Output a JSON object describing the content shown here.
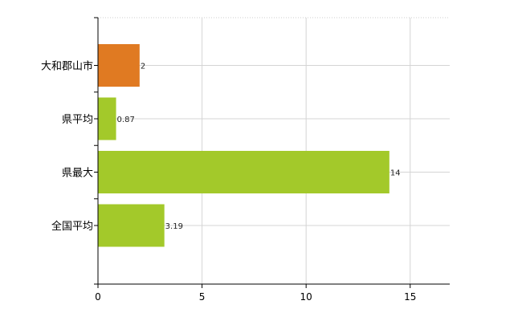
{
  "chart_data": {
    "type": "bar",
    "orientation": "horizontal",
    "categories": [
      "大和郡山市",
      "県平均",
      "県最大",
      "全国平均"
    ],
    "values": [
      2,
      0.87,
      14,
      3.19
    ],
    "data_labels": [
      "2",
      "0.87",
      "14",
      "3.19"
    ],
    "bar_colors": [
      "#e07a22",
      "#a3c92a",
      "#a3c92a",
      "#a3c92a"
    ],
    "x_ticks": [
      0,
      5,
      10,
      15
    ],
    "xlim": [
      0,
      16.9
    ],
    "grid": true,
    "legend": "none",
    "title": "",
    "xlabel": "",
    "ylabel": ""
  }
}
